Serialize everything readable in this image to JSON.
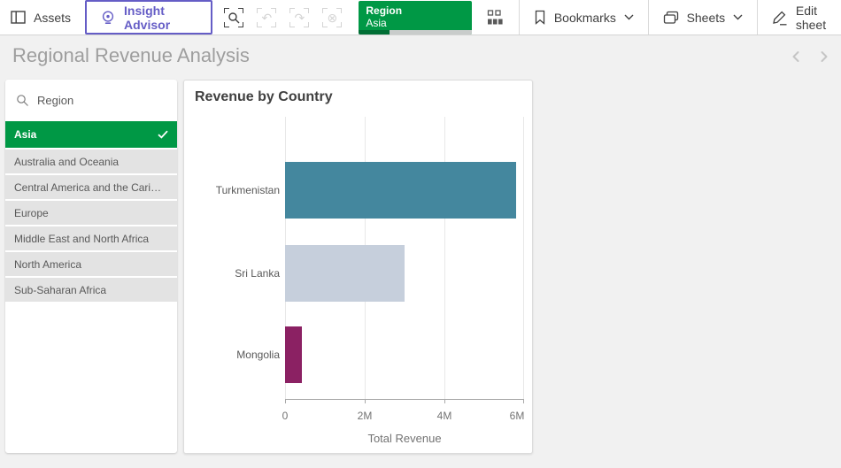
{
  "toolbar": {
    "assets_label": "Assets",
    "insight_advisor_label": "Insight Advisor",
    "selection_chip": {
      "field": "Region",
      "value": "Asia"
    },
    "bookmarks_label": "Bookmarks",
    "sheets_label": "Sheets",
    "edit_sheet_label": "Edit sheet"
  },
  "sheet": {
    "title": "Regional Revenue Analysis"
  },
  "filter_panel": {
    "field_label": "Region",
    "selected_item": "Asia",
    "items": [
      "Australia and Oceania",
      "Central America and the Cari…",
      "Europe",
      "Middle East and North Africa",
      "North America",
      "Sub-Saharan Africa"
    ]
  },
  "chart_data": {
    "type": "bar",
    "orientation": "horizontal",
    "title": "Revenue by Country",
    "categories": [
      "Turkmenistan",
      "Sri Lanka",
      "Mongolia"
    ],
    "values": [
      5.8,
      3.0,
      0.42
    ],
    "values_unit": "millions",
    "colors": [
      "#44879e",
      "#c6cfdc",
      "#8b2163"
    ],
    "xlabel": "Total Revenue",
    "xlim": [
      0,
      6
    ],
    "xticks": [
      "0",
      "2M",
      "4M",
      "6M"
    ],
    "grid": true,
    "legend": "none"
  },
  "colors": {
    "selection_green": "#009845",
    "selection_progress_green": "#006e35",
    "insight_advisor_purple": "#655dc6"
  },
  "icons": {
    "undo_glyph": "↶",
    "redo_glyph": "↷",
    "clear_selections_glyph": "⊗"
  }
}
